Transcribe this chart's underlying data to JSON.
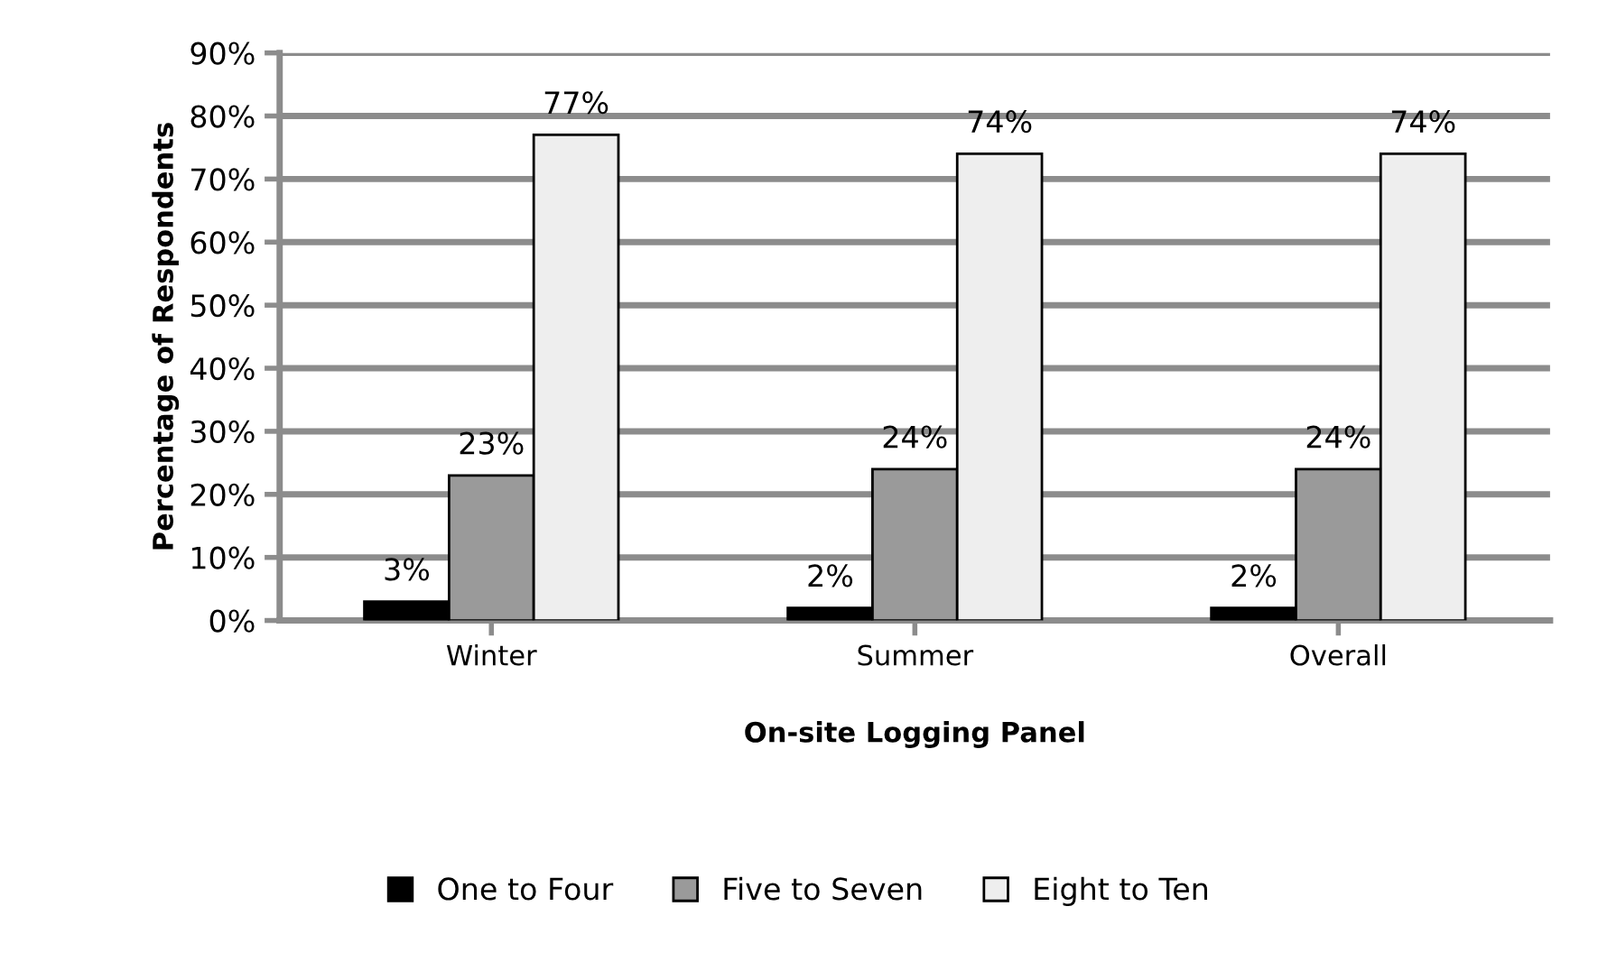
{
  "chart_data": {
    "type": "bar",
    "xlabel": "On-site Logging Panel",
    "ylabel": "Percentage of Respondents",
    "categories": [
      "Winter",
      "Summer",
      "Overall"
    ],
    "series": [
      {
        "name": "One to Four",
        "color": "#000000",
        "values": [
          3,
          2,
          2
        ]
      },
      {
        "name": "Five to Seven",
        "color": "#9a9a9a",
        "values": [
          23,
          24,
          24
        ]
      },
      {
        "name": "Eight to Ten",
        "color": "#eeeeee",
        "values": [
          77,
          74,
          74
        ]
      }
    ],
    "ylim": [
      0,
      90
    ],
    "yticks": [
      {
        "value": 0,
        "label": "0%"
      },
      {
        "value": 10,
        "label": "10%"
      },
      {
        "value": 20,
        "label": "20%"
      },
      {
        "value": 30,
        "label": "30%"
      },
      {
        "value": 40,
        "label": "40%"
      },
      {
        "value": 50,
        "label": "50%"
      },
      {
        "value": 60,
        "label": "60%"
      },
      {
        "value": 70,
        "label": "70%"
      },
      {
        "value": 80,
        "label": "80%"
      },
      {
        "value": 90,
        "label": "90%"
      }
    ],
    "value_labels": [
      [
        "3%",
        "2%",
        "2%"
      ],
      [
        "23%",
        "24%",
        "24%"
      ],
      [
        "77%",
        "74%",
        "74%"
      ]
    ],
    "grid": "y",
    "legend": "bottom"
  }
}
